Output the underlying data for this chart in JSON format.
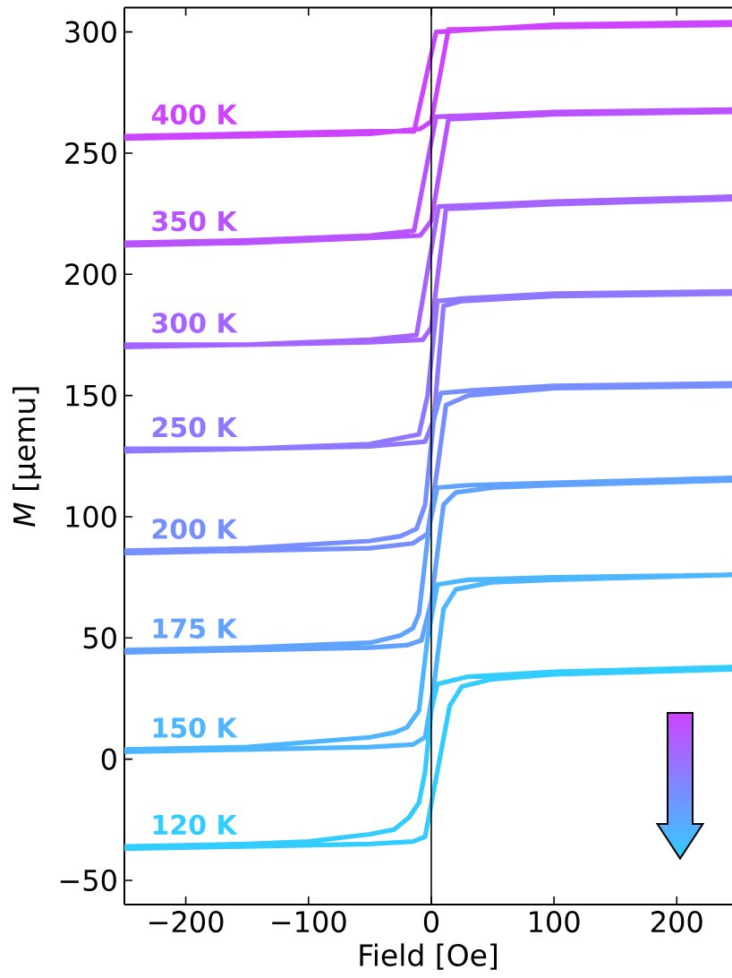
{
  "chart_data": {
    "type": "line",
    "xlabel": "Field [Oe]",
    "ylabel": "*M* [μemu]",
    "xlim": [
      -250,
      245
    ],
    "ylim": [
      -60,
      310
    ],
    "xticks": [
      {
        "value": -200,
        "label": "−200"
      },
      {
        "value": -100,
        "label": "−100"
      },
      0,
      100,
      200
    ],
    "yticks": [
      {
        "value": -50,
        "label": "−50"
      },
      0,
      50,
      100,
      150,
      200,
      250,
      300
    ],
    "ref_lines": [
      {
        "axis": "x",
        "value": 0,
        "color": "#000000"
      }
    ],
    "series": [
      {
        "name": "400 K",
        "color": "#cc44ff",
        "x": [
          -250,
          -150,
          -50,
          -9,
          0,
          14,
          100,
          245,
          245,
          100,
          4,
          -14,
          -50,
          -150,
          -250
        ],
        "values": [
          256,
          257,
          258,
          260,
          263,
          301,
          302,
          303,
          304,
          303,
          300,
          259,
          259,
          258,
          257
        ]
      },
      {
        "name": "350 K",
        "color": "#b953ff",
        "x": [
          -250,
          -150,
          -50,
          -9,
          0,
          14,
          100,
          245,
          245,
          100,
          4,
          -14,
          -50,
          -150,
          -250
        ],
        "values": [
          212,
          213,
          215,
          216,
          222,
          264,
          266,
          267,
          268,
          267,
          265,
          218,
          216,
          214,
          213
        ]
      },
      {
        "name": "300 K",
        "color": "#a464ff",
        "x": [
          -250,
          -150,
          -50,
          -7,
          0,
          12,
          100,
          245,
          245,
          100,
          6,
          -12,
          -50,
          -150,
          -250
        ],
        "values": [
          170,
          171,
          172,
          173,
          178,
          227,
          229,
          231,
          232,
          230,
          228,
          175,
          173,
          171,
          171
        ]
      },
      {
        "name": "250 K",
        "color": "#8f78ff",
        "x": [
          -250,
          -150,
          -50,
          -5,
          2,
          10,
          25,
          100,
          245,
          245,
          100,
          25,
          5,
          -3,
          -10,
          -50,
          -150,
          -250
        ],
        "values": [
          127,
          128,
          129,
          131,
          140,
          187,
          189,
          191,
          192,
          193,
          192,
          190,
          189,
          150,
          134,
          130,
          128,
          128
        ]
      },
      {
        "name": "200 K",
        "color": "#778eff",
        "x": [
          -250,
          -150,
          -50,
          -15,
          -3,
          5,
          12,
          30,
          100,
          245,
          245,
          100,
          30,
          8,
          2,
          -5,
          -12,
          -25,
          -50,
          -150,
          -250
        ],
        "values": [
          85,
          86,
          87,
          89,
          93,
          120,
          146,
          150,
          153,
          154,
          155,
          154,
          152,
          151,
          140,
          105,
          95,
          92,
          90,
          87,
          86
        ]
      },
      {
        "name": "175 K",
        "color": "#62a2ff",
        "x": [
          -250,
          -150,
          -50,
          -20,
          -8,
          0,
          10,
          20,
          50,
          100,
          245,
          245,
          100,
          30,
          5,
          -2,
          -10,
          -15,
          -25,
          -50,
          -150,
          -250
        ],
        "values": [
          44,
          45,
          46,
          47,
          49,
          65,
          105,
          110,
          112,
          113,
          115,
          116,
          114,
          113,
          112,
          95,
          60,
          54,
          51,
          48,
          46,
          45
        ]
      },
      {
        "name": "150 K",
        "color": "#4db6ff",
        "x": [
          -250,
          -150,
          -50,
          -15,
          -5,
          2,
          10,
          20,
          50,
          100,
          245,
          245,
          100,
          30,
          5,
          -3,
          -10,
          -20,
          -30,
          -50,
          -150,
          -250
        ],
        "values": [
          3,
          4,
          5,
          6,
          9,
          30,
          62,
          70,
          73,
          74,
          76,
          76,
          75,
          74,
          72,
          50,
          20,
          13,
          11,
          9,
          5,
          4
        ]
      },
      {
        "name": "120 K",
        "color": "#33ccff",
        "x": [
          -250,
          -150,
          -50,
          -15,
          -5,
          5,
          15,
          25,
          50,
          100,
          245,
          245,
          100,
          30,
          5,
          0,
          -5,
          -10,
          -18,
          -30,
          -50,
          -100,
          -150,
          -250
        ],
        "values": [
          -37,
          -36,
          -35,
          -34,
          -32,
          -5,
          22,
          30,
          33,
          35,
          37,
          38,
          36,
          34,
          31,
          20,
          -5,
          -18,
          -24,
          -29,
          -31,
          -34,
          -35,
          -36
        ]
      }
    ]
  }
}
